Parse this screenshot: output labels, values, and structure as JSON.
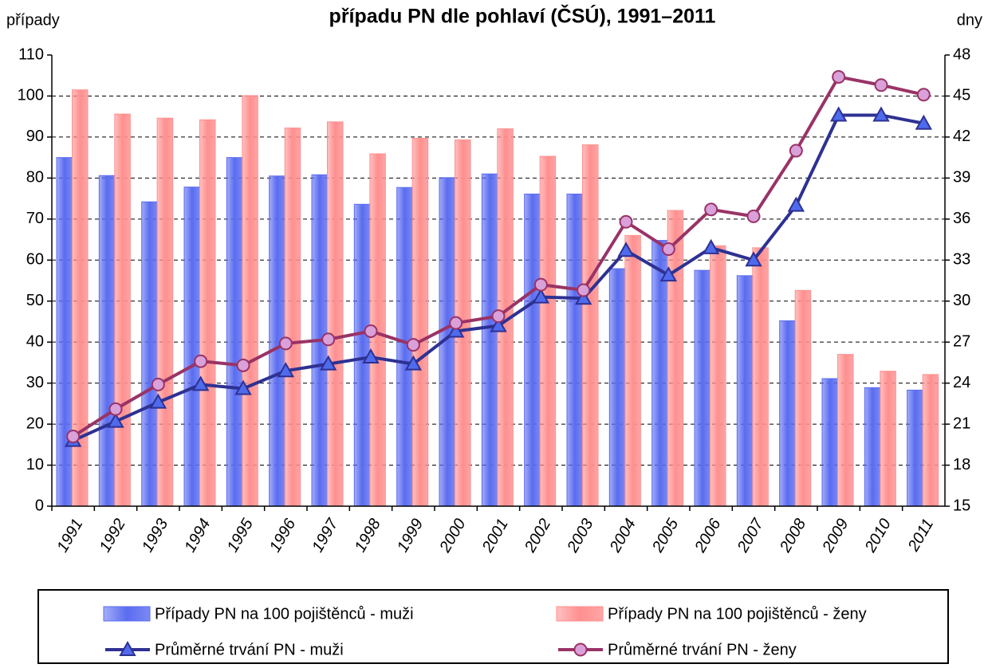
{
  "chart_data": {
    "type": "combo",
    "title": "případu PN dle pohlaví (ČSÚ), 1991–2011",
    "y_label": "případy",
    "y2_label": "dny",
    "categories": [
      "1991",
      "1992",
      "1993",
      "1994",
      "1995",
      "1996",
      "1997",
      "1998",
      "1999",
      "2000",
      "2001",
      "2002",
      "2003",
      "2004",
      "2005",
      "2006",
      "2007",
      "2008",
      "2009",
      "2010",
      "2011"
    ],
    "series": [
      {
        "name": "Případy PN na 100 pojištěnců - muži",
        "type": "bar",
        "axis": "y",
        "color": "#5a6cf0",
        "values": [
          85,
          80.6,
          74.2,
          77.8,
          85,
          80.5,
          80.8,
          73.6,
          77.7,
          80.1,
          81,
          76.1,
          76.1,
          57.9,
          64.8,
          57.5,
          56.2,
          45.2,
          31.1,
          28.9,
          28.3
        ]
      },
      {
        "name": "Případy PN na 100 pojištěnců - ženy",
        "type": "bar",
        "axis": "y",
        "color": "#ff8f8f",
        "values": [
          101.5,
          95.6,
          94.6,
          94.2,
          100.1,
          92.2,
          93.7,
          85.9,
          89.7,
          89.3,
          92,
          85.3,
          88.1,
          66,
          72.1,
          63.5,
          63,
          52.6,
          37,
          32.9,
          32.1
        ]
      },
      {
        "name": "Průměrné trvání PN - muži",
        "type": "line",
        "marker": "triangle",
        "axis": "y2",
        "color": "#2e3192",
        "marker_color": "#4f6bed",
        "values": [
          19.8,
          21.2,
          22.6,
          23.9,
          23.6,
          24.9,
          25.4,
          25.9,
          25.4,
          27.8,
          28.2,
          30.3,
          30.2,
          33.7,
          31.9,
          33.9,
          33.0,
          37.0,
          43.6,
          43.6,
          43.0
        ]
      },
      {
        "name": "Průměrné trvání PN - ženy",
        "type": "line",
        "marker": "circle",
        "axis": "y2",
        "color": "#993366",
        "marker_color": "#d9a0d9",
        "values": [
          20.1,
          22.1,
          23.9,
          25.6,
          25.3,
          26.9,
          27.2,
          27.8,
          26.8,
          28.4,
          28.9,
          31.2,
          30.8,
          35.8,
          33.8,
          36.7,
          36.2,
          41.0,
          46.4,
          45.8,
          45.1
        ]
      }
    ],
    "ylim": [
      0,
      110
    ],
    "yticks": [
      0,
      10,
      20,
      30,
      40,
      50,
      60,
      70,
      80,
      90,
      100,
      110
    ],
    "y2lim": [
      15,
      48
    ],
    "y2ticks": [
      15,
      18,
      21,
      24,
      27,
      30,
      33,
      36,
      39,
      42,
      45,
      48
    ],
    "grid": true,
    "legend": "bottom"
  }
}
